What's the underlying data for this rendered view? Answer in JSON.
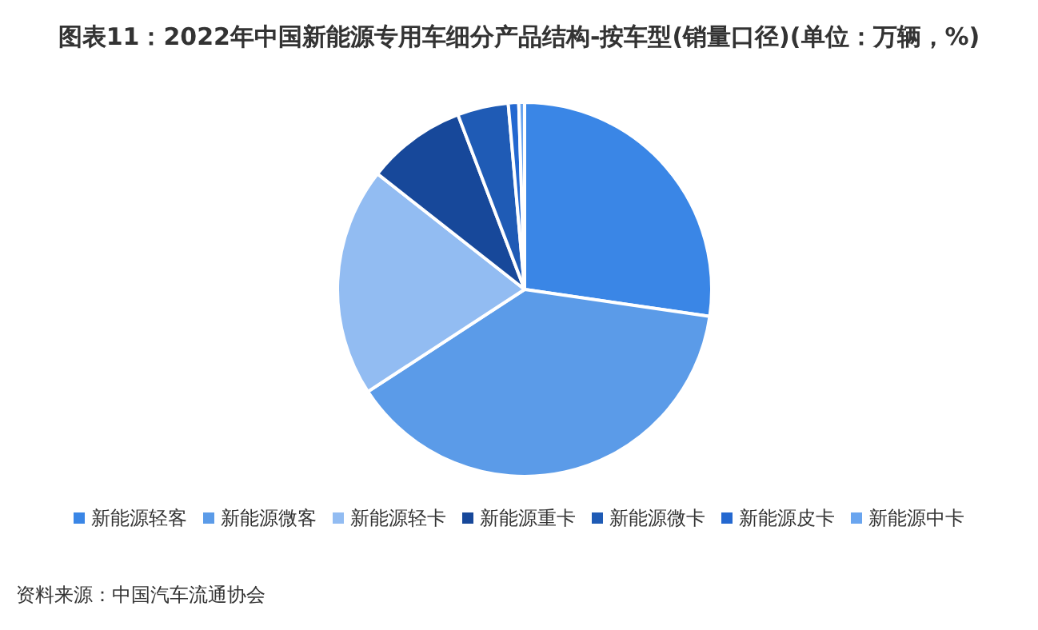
{
  "chart_data": {
    "type": "pie",
    "title": "图表11：2022年中国新能源专用车细分产品结构-按车型(销量口径)(单位：万辆，%)",
    "categories": [
      "新能源轻客",
      "新能源微客",
      "新能源轻卡",
      "新能源重卡",
      "新能源微卡",
      "新能源皮卡",
      "新能源中卡"
    ],
    "values": [
      27.3,
      38.5,
      19.8,
      8.6,
      4.4,
      0.9,
      0.5
    ],
    "colors": [
      "#3a86e6",
      "#5b9be8",
      "#92bcf2",
      "#17489a",
      "#1f5bb5",
      "#2468d0",
      "#6aa5ef"
    ],
    "legend": "bottom",
    "annotations": [
      "资料来源：中国汽车流通协会"
    ]
  }
}
